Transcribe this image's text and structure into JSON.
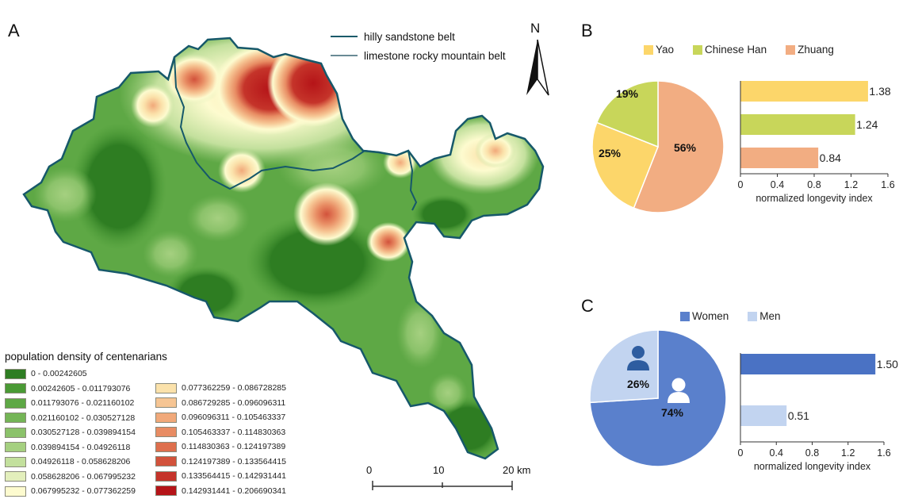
{
  "panels": {
    "a": "A",
    "b": "B",
    "c": "C"
  },
  "map": {
    "boundary_legend": [
      {
        "label": "hilly sandstone belt",
        "color": "#1a5a6a"
      },
      {
        "label": "limestone rocky mountain belt",
        "color": "#6a8a95"
      }
    ],
    "north_arrow_label": "N",
    "scale_bar": {
      "ticks": [
        "0",
        "10",
        "20 km"
      ]
    },
    "legend_title": "population density of centenarians",
    "legend_classes": [
      {
        "range": "0 - 0.00242605",
        "color": "#2e7d22"
      },
      {
        "range": "0.00242605 - 0.011793076",
        "color": "#4a9a35"
      },
      {
        "range": "0.011793076 - 0.021160102",
        "color": "#5ea845"
      },
      {
        "range": "0.021160102 - 0.030527128",
        "color": "#74b556"
      },
      {
        "range": "0.030527128 - 0.039894154",
        "color": "#8bc26a"
      },
      {
        "range": "0.039894154 - 0.04926118",
        "color": "#a5d080"
      },
      {
        "range": "0.04926118 - 0.058628206",
        "color": "#c3e09d"
      },
      {
        "range": "0.058628206 - 0.067995232",
        "color": "#e3efbc"
      },
      {
        "range": "0.067995232 - 0.077362259",
        "color": "#fdfbcf"
      },
      {
        "range": "0.077362259 - 0.086728285",
        "color": "#fbe2ab"
      },
      {
        "range": "0.086729285 - 0.096096311",
        "color": "#f6c593"
      },
      {
        "range": "0.096096311 - 0.105463337",
        "color": "#f1a97a"
      },
      {
        "range": "0.105463337 - 0.114830363",
        "color": "#e88c63"
      },
      {
        "range": "0.114830363 - 0.124197389",
        "color": "#de6f4d"
      },
      {
        "range": "0.124197389 - 0.133564415",
        "color": "#d2523b"
      },
      {
        "range": "0.133564415 - 0.142931441",
        "color": "#c5342a"
      },
      {
        "range": "0.142931441 - 0.206690341",
        "color": "#b51418"
      }
    ]
  },
  "chart_data": [
    {
      "type": "pie",
      "panel": "B",
      "title": "",
      "legend": [
        "Yao",
        "Chinese Han",
        "Zhuang"
      ],
      "legend_placement": "top",
      "slices": [
        {
          "label": "Zhuang",
          "value": 56,
          "display": "56%",
          "color": "#f2ad82"
        },
        {
          "label": "Yao",
          "value": 25,
          "display": "25%",
          "color": "#fcd66a"
        },
        {
          "label": "Chinese Han",
          "value": 19,
          "display": "19%",
          "color": "#c8d65a"
        }
      ]
    },
    {
      "type": "bar",
      "orientation": "horizontal",
      "panel": "B",
      "categories": [
        "Yao",
        "Chinese Han",
        "Zhuang"
      ],
      "values": [
        1.38,
        1.24,
        0.84
      ],
      "value_labels": [
        "1.38",
        "1.24",
        "0.84"
      ],
      "colors": [
        "#fcd66a",
        "#c8d65a",
        "#f2ad82"
      ],
      "xlabel": "normalized longevity index",
      "xlim": [
        0,
        1.6
      ],
      "xticks": [
        "0",
        "0.4",
        "0.8",
        "1.2",
        "1.6"
      ],
      "grid": false
    },
    {
      "type": "pie",
      "panel": "C",
      "legend": [
        "Women",
        "Men"
      ],
      "legend_placement": "top",
      "slices": [
        {
          "label": "Women",
          "value": 74,
          "display": "74%",
          "color": "#5a80cc",
          "icon": "woman-icon"
        },
        {
          "label": "Men",
          "value": 26,
          "display": "26%",
          "color": "#c2d4f0",
          "icon": "man-icon"
        }
      ]
    },
    {
      "type": "bar",
      "orientation": "horizontal",
      "panel": "C",
      "categories": [
        "Women",
        "Men"
      ],
      "values": [
        1.5,
        0.51
      ],
      "value_labels": [
        "1.50",
        "0.51"
      ],
      "colors": [
        "#4a72c4",
        "#c2d4f0"
      ],
      "xlabel": "normalized longevity index",
      "xlim": [
        0,
        1.6
      ],
      "xticks": [
        "0",
        "0.4",
        "0.8",
        "1.2",
        "1.6"
      ],
      "grid": false
    }
  ]
}
